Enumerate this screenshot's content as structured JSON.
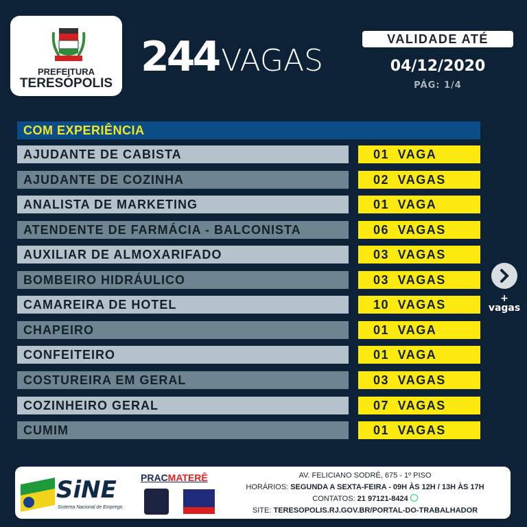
{
  "header": {
    "logo": {
      "line1": "PREFEITURA",
      "line2": "TERESÓPOLIS"
    },
    "count": "244",
    "count_unit": "VAGAS",
    "validity_label": "VALIDADE ATÉ",
    "validity_date": "04/12/2020",
    "page": "PÁG:  1/4"
  },
  "section": {
    "title": "COM EXPERIÊNCIA"
  },
  "jobs": [
    {
      "title": "AJUDANTE DE CABISTA",
      "openings": "01 VAGA"
    },
    {
      "title": "AJUDANTE DE COZINHA",
      "openings": "02 VAGAS"
    },
    {
      "title": "ANALISTA DE MARKETING",
      "openings": "01 VAGA"
    },
    {
      "title": "ATENDENTE DE FARMÁCIA - BALCONISTA",
      "openings": "06 VAGAS"
    },
    {
      "title": "AUXILIAR DE ALMOXARIFADO",
      "openings": "03 VAGAS"
    },
    {
      "title": "BOMBEIRO HIDRÁULICO",
      "openings": "03 VAGAS"
    },
    {
      "title": "CAMAREIRA DE HOTEL",
      "openings": "10 VAGAS"
    },
    {
      "title": "CHAPEIRO",
      "openings": "01 VAGA"
    },
    {
      "title": "CONFEITEIRO",
      "openings": "01 VAGA"
    },
    {
      "title": "COSTUREIRA EM GERAL",
      "openings": "03 VAGAS"
    },
    {
      "title": "COZINHEIRO GERAL",
      "openings": "07 VAGAS"
    },
    {
      "title": "CUMIM",
      "openings": "01 VAGAS"
    }
  ],
  "next": {
    "icon": "chevron-right-icon",
    "plus": "+",
    "label": "vagas"
  },
  "footer": {
    "sine_logo": "SiNE",
    "sine_sub": "Sistema Nacional de Emprego",
    "prac_a": "PRAC",
    "prac_b": "MATERÊ",
    "address": "AV. FELICIANO SODRÉ, 675 - 1º PISO",
    "hours_label": "HORÁRIOS: ",
    "hours": "SEGUNDA A SEXTA-FEIRA - 09H ÀS 12H / 13H ÀS 17H",
    "contact_label": "CONTATOS: ",
    "contact": "21 97121-8424",
    "site_label": "SITE: ",
    "site": "TERESOPOLIS.RJ.GOV.BR/PORTAL-DO-TRABALHADOR"
  },
  "colors": {
    "background": "#0d2237",
    "section": "#0b4d86",
    "section_text": "#f2e52a",
    "row_light": "#b5c2cb",
    "row_dark": "#6e8591",
    "badge": "#fbe90f"
  }
}
